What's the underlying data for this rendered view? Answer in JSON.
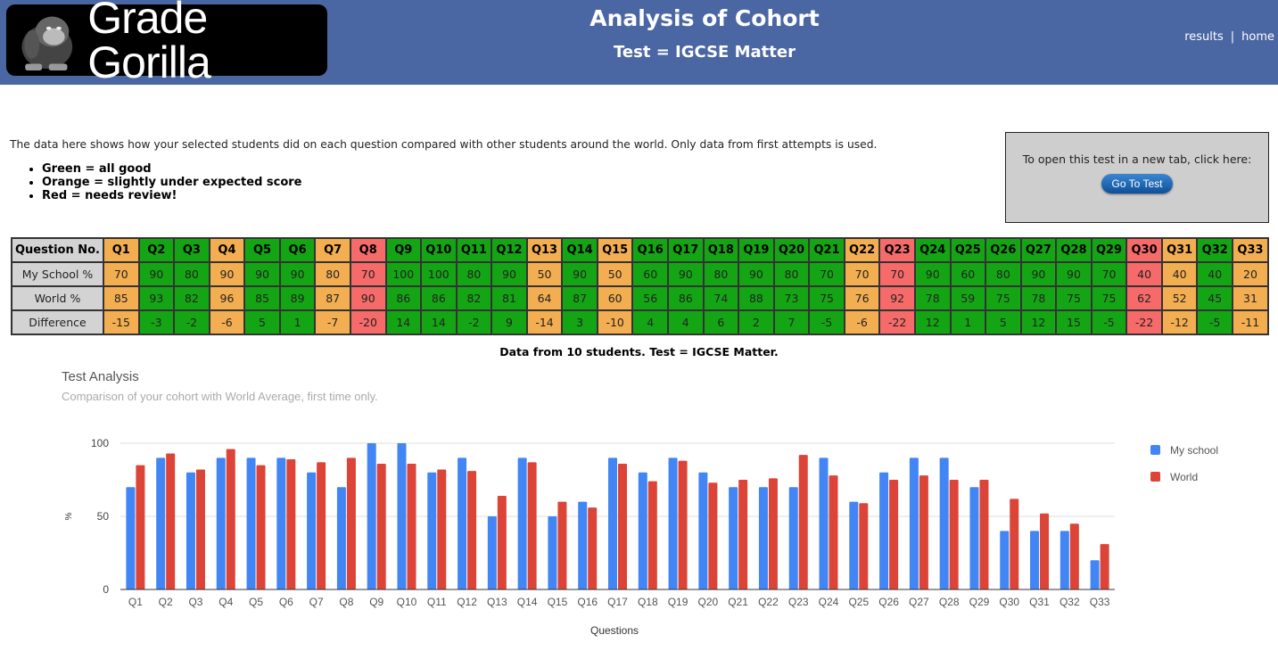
{
  "header": {
    "logo_text": "Grade Gorilla",
    "title": "Analysis of Cohort",
    "subtitle": "Test = IGCSE Matter",
    "nav": {
      "results": "results",
      "separator": "|",
      "home": "home"
    }
  },
  "intro": {
    "text": "The data here shows how your selected students did on each question compared with other students around the world. Only data from first attempts is used.",
    "legend": [
      "Green = all good",
      "Orange = slightly under expected score",
      "Red = needs review!"
    ]
  },
  "test_box": {
    "message": "To open this test in a new tab, click here:",
    "button_label": "Go To Test"
  },
  "colors": {
    "green": "#14a514",
    "orange": "#f3ae51",
    "red": "#f66a6a",
    "my_school": "#4285f4",
    "world": "#db4437"
  },
  "table": {
    "row_labels": [
      "Question No.",
      "My School %",
      "World %",
      "Difference"
    ],
    "questions": [
      {
        "q": "Q1",
        "school": "70",
        "world": "85",
        "diff": "-15",
        "status": "o"
      },
      {
        "q": "Q2",
        "school": "90",
        "world": "93",
        "diff": "-3",
        "status": "g"
      },
      {
        "q": "Q3",
        "school": "80",
        "world": "82",
        "diff": "-2",
        "status": "g"
      },
      {
        "q": "Q4",
        "school": "90",
        "world": "96",
        "diff": "-6",
        "status": "o"
      },
      {
        "q": "Q5",
        "school": "90",
        "world": "85",
        "diff": "5",
        "status": "g"
      },
      {
        "q": "Q6",
        "school": "90",
        "world": "89",
        "diff": "1",
        "status": "g"
      },
      {
        "q": "Q7",
        "school": "80",
        "world": "87",
        "diff": "-7",
        "status": "o"
      },
      {
        "q": "Q8",
        "school": "70",
        "world": "90",
        "diff": "-20",
        "status": "r"
      },
      {
        "q": "Q9",
        "school": "100",
        "world": "86",
        "diff": "14",
        "status": "g"
      },
      {
        "q": "Q10",
        "school": "100",
        "world": "86",
        "diff": "14",
        "status": "g"
      },
      {
        "q": "Q11",
        "school": "80",
        "world": "82",
        "diff": "-2",
        "status": "g"
      },
      {
        "q": "Q12",
        "school": "90",
        "world": "81",
        "diff": "9",
        "status": "g"
      },
      {
        "q": "Q13",
        "school": "50",
        "world": "64",
        "diff": "-14",
        "status": "o"
      },
      {
        "q": "Q14",
        "school": "90",
        "world": "87",
        "diff": "3",
        "status": "g"
      },
      {
        "q": "Q15",
        "school": "50",
        "world": "60",
        "diff": "-10",
        "status": "o"
      },
      {
        "q": "Q16",
        "school": "60",
        "world": "56",
        "diff": "4",
        "status": "g"
      },
      {
        "q": "Q17",
        "school": "90",
        "world": "86",
        "diff": "4",
        "status": "g"
      },
      {
        "q": "Q18",
        "school": "80",
        "world": "74",
        "diff": "6",
        "status": "g"
      },
      {
        "q": "Q19",
        "school": "90",
        "world": "88",
        "diff": "2",
        "status": "g"
      },
      {
        "q": "Q20",
        "school": "80",
        "world": "73",
        "diff": "7",
        "status": "g"
      },
      {
        "q": "Q21",
        "school": "70",
        "world": "75",
        "diff": "-5",
        "status": "g"
      },
      {
        "q": "Q22",
        "school": "70",
        "world": "76",
        "diff": "-6",
        "status": "o"
      },
      {
        "q": "Q23",
        "school": "70",
        "world": "92",
        "diff": "-22",
        "status": "r"
      },
      {
        "q": "Q24",
        "school": "90",
        "world": "78",
        "diff": "12",
        "status": "g"
      },
      {
        "q": "Q25",
        "school": "60",
        "world": "59",
        "diff": "1",
        "status": "g"
      },
      {
        "q": "Q26",
        "school": "80",
        "world": "75",
        "diff": "5",
        "status": "g"
      },
      {
        "q": "Q27",
        "school": "90",
        "world": "78",
        "diff": "12",
        "status": "g"
      },
      {
        "q": "Q28",
        "school": "90",
        "world": "75",
        "diff": "15",
        "status": "g"
      },
      {
        "q": "Q29",
        "school": "70",
        "world": "75",
        "diff": "-5",
        "status": "g"
      },
      {
        "q": "Q30",
        "school": "40",
        "world": "62",
        "diff": "-22",
        "status": "r"
      },
      {
        "q": "Q31",
        "school": "40",
        "world": "52",
        "diff": "-12",
        "status": "o"
      },
      {
        "q": "Q32",
        "school": "40",
        "world": "45",
        "diff": "-5",
        "status": "g"
      },
      {
        "q": "Q33",
        "school": "20",
        "world": "31",
        "diff": "-11",
        "status": "o"
      }
    ]
  },
  "caption": "Data from 10 students. Test = IGCSE Matter.",
  "chart_data": {
    "type": "bar",
    "title": "Test Analysis",
    "subtitle": "Comparison of your cohort with World Average, first time only.",
    "xlabel": "Questions",
    "ylabel": "%",
    "ylim": [
      0,
      100
    ],
    "yticks": [
      0,
      50,
      100
    ],
    "grid": true,
    "legend_position": "right",
    "categories": [
      "Q1",
      "Q2",
      "Q3",
      "Q4",
      "Q5",
      "Q6",
      "Q7",
      "Q8",
      "Q9",
      "Q10",
      "Q11",
      "Q12",
      "Q13",
      "Q14",
      "Q15",
      "Q16",
      "Q17",
      "Q18",
      "Q19",
      "Q20",
      "Q21",
      "Q22",
      "Q23",
      "Q24",
      "Q25",
      "Q26",
      "Q27",
      "Q28",
      "Q29",
      "Q30",
      "Q31",
      "Q32",
      "Q33"
    ],
    "series": [
      {
        "name": "My school",
        "color": "#4285f4",
        "values": [
          70,
          90,
          80,
          90,
          90,
          90,
          80,
          70,
          100,
          100,
          80,
          90,
          50,
          90,
          50,
          60,
          90,
          80,
          90,
          80,
          70,
          70,
          70,
          90,
          60,
          80,
          90,
          90,
          70,
          40,
          40,
          40,
          20
        ]
      },
      {
        "name": "World",
        "color": "#db4437",
        "values": [
          85,
          93,
          82,
          96,
          85,
          89,
          87,
          90,
          86,
          86,
          82,
          81,
          64,
          87,
          60,
          56,
          86,
          74,
          88,
          73,
          75,
          76,
          92,
          78,
          59,
          75,
          78,
          75,
          75,
          62,
          52,
          45,
          31
        ]
      }
    ]
  }
}
